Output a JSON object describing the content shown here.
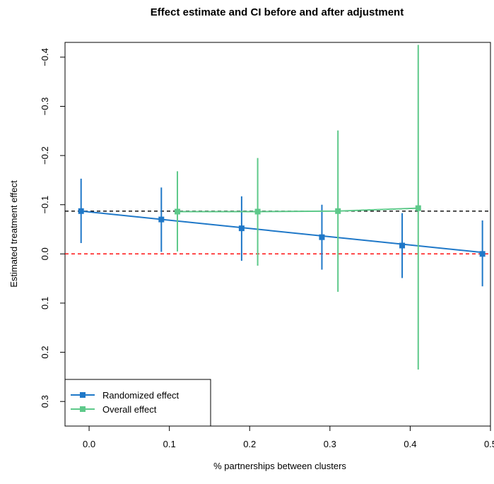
{
  "chart_data": {
    "type": "scatter",
    "title": "Effect estimate and CI before and after adjustment",
    "xlabel": "% partnerships between clusters",
    "ylabel": "Estimated treatment effect",
    "xlim": [
      -0.03,
      0.5
    ],
    "ylim": [
      0.35,
      -0.43
    ],
    "y_reversed": true,
    "x_ticks": [
      0.0,
      0.1,
      0.2,
      0.3,
      0.4,
      0.5
    ],
    "x_tick_labels": [
      "0.0",
      "0.1",
      "0.2",
      "0.3",
      "0.4",
      "0.5"
    ],
    "y_ticks": [
      -0.4,
      -0.3,
      -0.2,
      -0.1,
      0.0,
      0.1,
      0.2,
      0.3
    ],
    "y_tick_labels": [
      "−0.4",
      "−0.3",
      "−0.2",
      "−0.1",
      "0.0",
      "0.1",
      "0.2",
      "0.3"
    ],
    "reference_lines": [
      {
        "y": -0.087,
        "color": "#000000",
        "style": "dashed"
      },
      {
        "y": 0.0,
        "color": "#ff0000",
        "style": "dashed"
      }
    ],
    "series": [
      {
        "name": "Randomized effect",
        "color": "#1f78c8",
        "x": [
          -0.01,
          0.09,
          0.19,
          0.29,
          0.39,
          0.49
        ],
        "y": [
          -0.087,
          -0.07,
          -0.052,
          -0.034,
          -0.017,
          0.0
        ],
        "ci_low": [
          -0.153,
          -0.135,
          -0.117,
          -0.1,
          -0.083,
          -0.068
        ],
        "ci_high": [
          -0.022,
          -0.004,
          0.014,
          0.032,
          0.049,
          0.066
        ],
        "fit_line": {
          "x": [
            -0.01,
            0.49
          ],
          "y": [
            -0.087,
            -0.003
          ]
        }
      },
      {
        "name": "Overall effect",
        "color": "#5ec98a",
        "x": [
          0.11,
          0.21,
          0.31,
          0.41
        ],
        "y": [
          -0.086,
          -0.086,
          -0.087,
          -0.093
        ],
        "ci_low": [
          -0.168,
          -0.195,
          -0.251,
          -0.425
        ],
        "ci_high": [
          -0.005,
          0.024,
          0.077,
          0.235
        ],
        "fit_line": {
          "x": [
            0.11,
            0.21,
            0.31,
            0.41
          ],
          "y": [
            -0.086,
            -0.086,
            -0.087,
            -0.093
          ]
        }
      }
    ],
    "legend": {
      "position": "bottom-left",
      "entries": [
        "Randomized effect",
        "Overall effect"
      ]
    }
  }
}
